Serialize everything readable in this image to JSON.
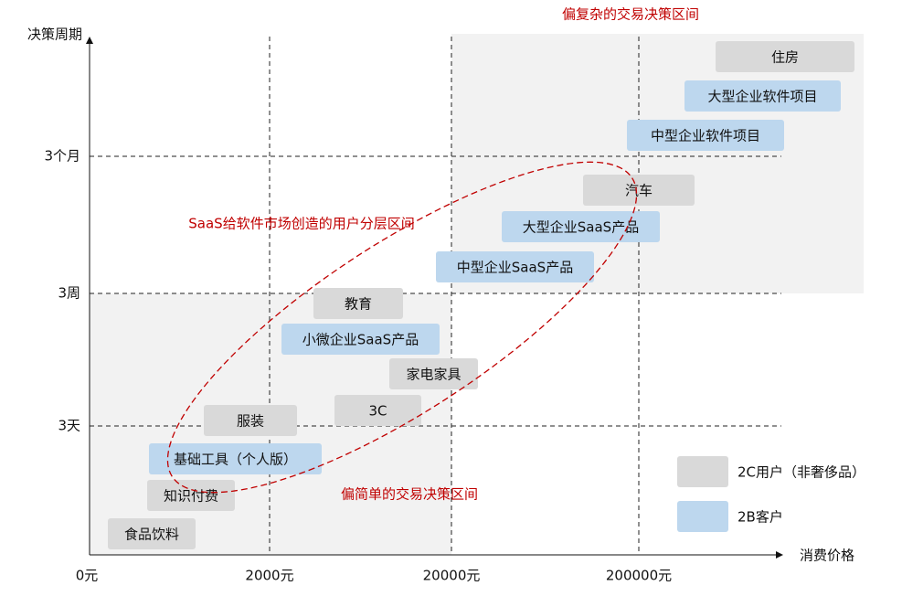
{
  "axes": {
    "y_title": "决策周期",
    "x_title": "消费价格",
    "y_ticks": [
      "3个月",
      "3周",
      "3天"
    ],
    "x_ticks": [
      "0元",
      "2000元",
      "20000元",
      "200000元"
    ]
  },
  "annotations": {
    "complex": "偏复杂的交易决策区间",
    "simple": "偏简单的交易决策区间",
    "saas": "SaaS给软件市场创造的用户分层区间"
  },
  "groups": [
    {
      "name": "2C用户（非奢侈品）",
      "color": "#d9d9d9",
      "items": [
        "住房",
        "汽车",
        "教育",
        "家电家具",
        "3C",
        "服装",
        "知识付费",
        "食品饮料"
      ]
    },
    {
      "name": "2B客户",
      "color": "#bdd7ee",
      "items": [
        "大型企业软件项目",
        "中型企业软件项目",
        "大型企业SaaS产品",
        "中型企业SaaS产品",
        "小微企业SaaS产品",
        "基础工具（个人版）"
      ]
    }
  ]
}
